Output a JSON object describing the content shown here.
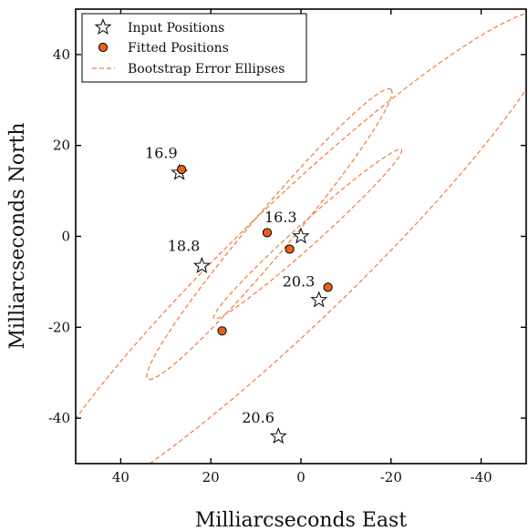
{
  "chart_data": {
    "type": "scatter",
    "title": "",
    "xlabel": "Milliarcseconds East",
    "ylabel": "Milliarcseconds North",
    "xlim": [
      50,
      -50
    ],
    "ylim": [
      -50,
      50
    ],
    "x_ticks": [
      40,
      20,
      0,
      -20,
      -40
    ],
    "x_tick_labels": [
      "40",
      "20",
      "0",
      "-20",
      "-40"
    ],
    "y_ticks": [
      40,
      20,
      0,
      -20,
      -40
    ],
    "y_tick_labels": [
      "40",
      "20",
      "0",
      "-20",
      "-40"
    ],
    "grid": false,
    "legend": {
      "placement": "top-left",
      "entries": [
        {
          "label": "Input Positions",
          "marker": "star"
        },
        {
          "label": "Fitted Positions",
          "marker": "circle"
        },
        {
          "label": "Bootstrap Error Ellipses",
          "marker": "dashed-line"
        }
      ]
    },
    "series": [
      {
        "name": "Input Positions",
        "marker": "star",
        "points": [
          {
            "x": 27,
            "y": 14
          },
          {
            "x": 0,
            "y": 0
          },
          {
            "x": 22,
            "y": -6.5
          },
          {
            "x": -4,
            "y": -14
          },
          {
            "x": 5,
            "y": -44
          }
        ]
      },
      {
        "name": "Fitted Positions",
        "marker": "circle",
        "points": [
          {
            "x": 26.5,
            "y": 14.7
          },
          {
            "x": 7.5,
            "y": 0.8
          },
          {
            "x": 2.5,
            "y": -2.8
          },
          {
            "x": -6,
            "y": -11.2
          },
          {
            "x": 17.5,
            "y": -20.8
          }
        ]
      },
      {
        "name": "Bootstrap Error Ellipses",
        "marker": "dashed-line",
        "ellipses": [
          {
            "center_x": -1.5,
            "center_y": 0.5,
            "semi_major": 28,
            "semi_minor": 2.5,
            "angle_deg": 42
          },
          {
            "center_x": 7,
            "center_y": 0.5,
            "semi_major": 42,
            "semi_minor": 4.5,
            "angle_deg": 50
          },
          {
            "center_x": 1.5,
            "center_y": -6,
            "semi_major": 80,
            "semi_minor": 13,
            "angle_deg": 44
          }
        ]
      }
    ],
    "annotations": [
      {
        "text": "16.9",
        "x": 31,
        "y": 17.2
      },
      {
        "text": "16.3",
        "x": 4.5,
        "y": 3.1
      },
      {
        "text": "18.8",
        "x": 26,
        "y": -3.2
      },
      {
        "text": "20.3",
        "x": 0.5,
        "y": -11
      },
      {
        "text": "20.6",
        "x": 9.5,
        "y": -41
      }
    ],
    "colors": {
      "fitted_fill": "#e8611a",
      "ellipse_stroke": "#f07a3a",
      "axis": "#000000",
      "star_fill": "#ffffff"
    }
  }
}
